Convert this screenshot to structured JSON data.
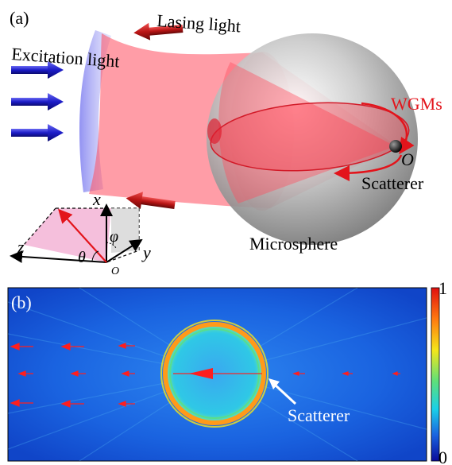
{
  "panel_a": {
    "label": "(a)",
    "lasing_light": "Lasing light",
    "excitation_light": "Excitation light",
    "wgms": "WGMs",
    "origin": "O",
    "scatterer": "Scatterer",
    "microsphere": "Microsphere",
    "axis_x": "x",
    "axis_y": "y",
    "axis_z": "z",
    "angle_phi": "φ",
    "angle_theta": "θ",
    "axes_origin": "O"
  },
  "panel_b": {
    "label": "(b)",
    "scatterer": "Scatterer",
    "colorbar_max": "1",
    "colorbar_min": "0"
  },
  "colors": {
    "excitation_arrow": "#1c1cc8",
    "lasing_arrow": "#b81515",
    "beam": "#ff5a6a",
    "wgm": "#e3141b",
    "field_bg": "#1a63e0",
    "ring": "#ff9a1a",
    "arrow_b": "#ff1e1e"
  }
}
